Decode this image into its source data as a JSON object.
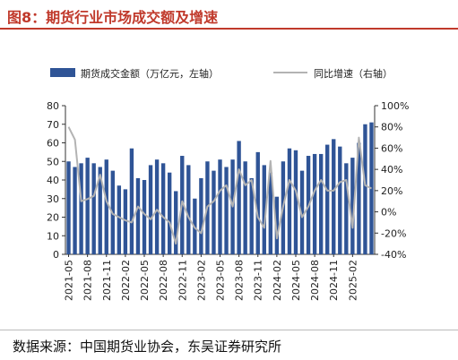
{
  "figure": {
    "title": "图8：期货行业市场成交额及增速",
    "source": "数据来源：中国期货业协会，东吴证券研究所"
  },
  "chart_data": {
    "type": "bar",
    "x": [
      "2021-05",
      "2021-06",
      "2021-07",
      "2021-08",
      "2021-09",
      "2021-10",
      "2021-11",
      "2021-12",
      "2022-01",
      "2022-02",
      "2022-03",
      "2022-04",
      "2022-05",
      "2022-06",
      "2022-07",
      "2022-08",
      "2022-09",
      "2022-10",
      "2022-11",
      "2022-12",
      "2023-01",
      "2023-02",
      "2023-03",
      "2023-04",
      "2023-05",
      "2023-06",
      "2023-07",
      "2023-08",
      "2023-09",
      "2023-10",
      "2023-11",
      "2023-12",
      "2024-01",
      "2024-02",
      "2024-03",
      "2024-04",
      "2024-05",
      "2024-06",
      "2024-07",
      "2024-08",
      "2024-09",
      "2024-10",
      "2024-11",
      "2024-12",
      "2025-01",
      "2025-02",
      "2025-03",
      "2025-04",
      "2025-05"
    ],
    "x_tick_labels": [
      "2021-05",
      "2021-08",
      "2021-11",
      "2022-02",
      "2022-05",
      "2022-08",
      "2022-11",
      "2023-02",
      "2023-05",
      "2023-08",
      "2023-11",
      "2024-02",
      "2024-05",
      "2024-08",
      "2024-11",
      "2025-02"
    ],
    "series": [
      {
        "name": "期货成交金额（万亿元，左轴）",
        "type": "bar",
        "axis": "left",
        "color": "#2f5496",
        "values": [
          50,
          47,
          49,
          52,
          49,
          47,
          51,
          45,
          37,
          35,
          57,
          41,
          40,
          48,
          51,
          49,
          44,
          34,
          53,
          48,
          30,
          41,
          50,
          45,
          51,
          47,
          51,
          61,
          50,
          41,
          55,
          48,
          44,
          31,
          50,
          57,
          56,
          45,
          53,
          54,
          54,
          59,
          62,
          58,
          49,
          52,
          60,
          70,
          71
        ]
      },
      {
        "name": "同比增速（右轴）",
        "type": "line",
        "axis": "right",
        "color": "#b3b3b3",
        "values": [
          80,
          68,
          10,
          12,
          15,
          35,
          10,
          -2,
          -5,
          -8,
          -10,
          5,
          -2,
          -7,
          2,
          -5,
          -10,
          -30,
          10,
          -5,
          -15,
          -20,
          5,
          10,
          20,
          25,
          5,
          40,
          25,
          30,
          -5,
          -15,
          48,
          -25,
          5,
          30,
          20,
          -5,
          5,
          20,
          30,
          20,
          20,
          28,
          30,
          -15,
          70,
          25,
          22
        ]
      }
    ],
    "y_left": {
      "range": [
        0,
        80
      ],
      "ticks": [
        "0",
        "10",
        "20",
        "30",
        "40",
        "50",
        "60",
        "70",
        "80"
      ]
    },
    "y_right": {
      "range": [
        -40,
        100
      ],
      "ticks": [
        "-40%",
        "-20%",
        "0%",
        "20%",
        "40%",
        "60%",
        "80%",
        "100%"
      ]
    },
    "legend": {
      "position": "top",
      "bar_label": "期货成交金额（万亿元，左轴）",
      "line_label": "同比增速（右轴）"
    },
    "grid": false
  }
}
